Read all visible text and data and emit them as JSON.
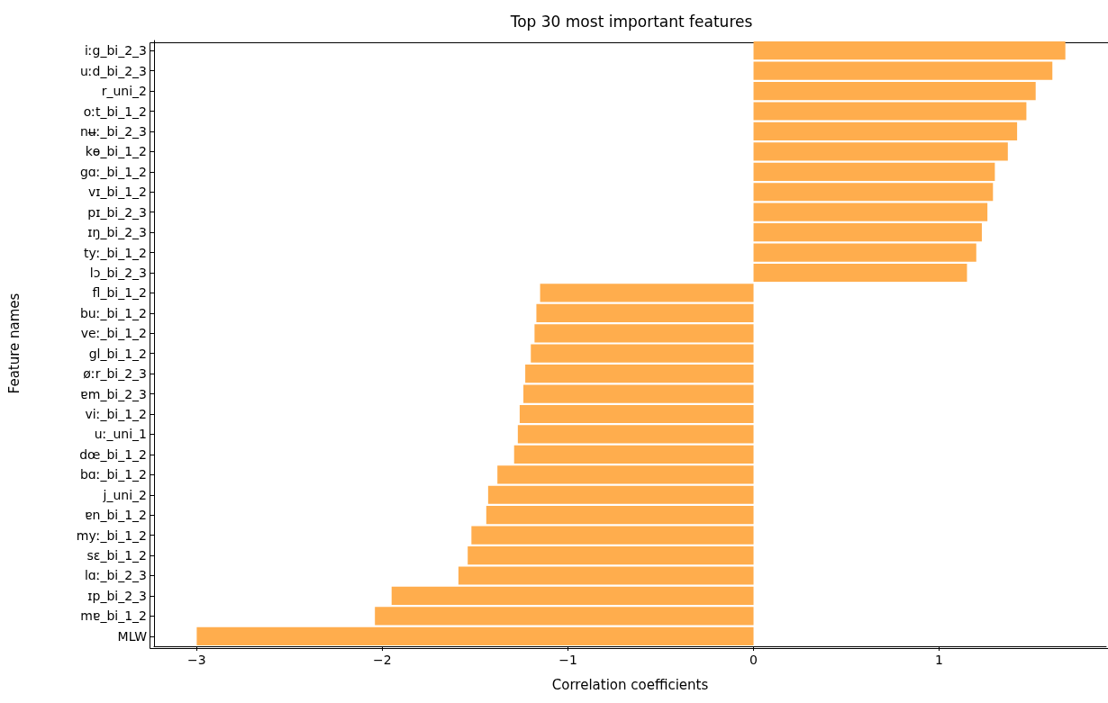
{
  "chart_data": {
    "type": "bar",
    "orientation": "horizontal",
    "title": "Top 30 most important features",
    "xlabel": "Correlation coefficients",
    "ylabel": "Feature names",
    "categories": [
      "iːg_bi_2_3",
      "uːd_bi_2_3",
      "r_uni_2",
      "oːt_bi_1_2",
      "nʉː_bi_2_3",
      "kɵ_bi_1_2",
      "gɑː_bi_1_2",
      "vɪ_bi_1_2",
      "pɪ_bi_2_3",
      "ɪŋ_bi_2_3",
      "tyː_bi_1_2",
      "lɔ_bi_2_3",
      "fl_bi_1_2",
      "buː_bi_1_2",
      "veː_bi_1_2",
      "gl_bi_1_2",
      "øːr_bi_2_3",
      "ɐm_bi_2_3",
      "viː_bi_1_2",
      "uː_uni_1",
      "dœ_bi_1_2",
      "bɑː_bi_1_2",
      "j_uni_2",
      "ɐn_bi_1_2",
      "myː_bi_1_2",
      "sɛ_bi_1_2",
      "lɑː_bi_2_3",
      "ɪp_bi_2_3",
      "mɐ_bi_1_2",
      "MLW"
    ],
    "values": [
      1.68,
      1.61,
      1.52,
      1.47,
      1.42,
      1.37,
      1.3,
      1.29,
      1.26,
      1.23,
      1.2,
      1.15,
      -1.15,
      -1.17,
      -1.18,
      -1.2,
      -1.23,
      -1.24,
      -1.26,
      -1.27,
      -1.29,
      -1.38,
      -1.43,
      -1.44,
      -1.52,
      -1.54,
      -1.59,
      -1.95,
      -2.04,
      -3.0
    ],
    "color": "#ffad4d",
    "xlim": [
      -3.23,
      1.9
    ],
    "xticks": [
      -3,
      -2,
      -1,
      0,
      1
    ],
    "grid": false
  }
}
